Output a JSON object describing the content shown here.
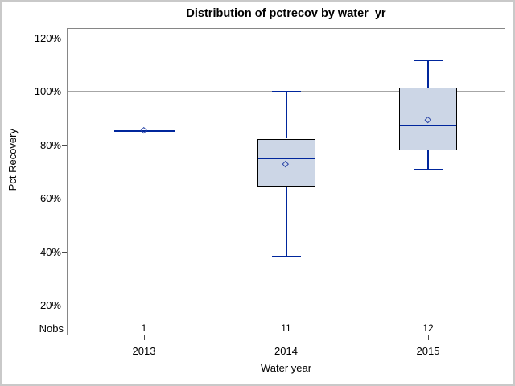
{
  "colors": {
    "box_fill": "#ccd6e6",
    "box_border": "#000000",
    "line_blue": "#00269c",
    "mean_marker": "#2c47a8",
    "gridline": "#a6a6a6",
    "frame": "#868686",
    "tick": "#4a4a4a",
    "text": "#000000",
    "outer_border": "#c9c9c9"
  },
  "axes": {
    "nobs_label": "Nobs"
  },
  "chart_data": {
    "type": "boxplot",
    "title": "Distribution of pctrecov by water_yr",
    "xlabel": "Water year",
    "ylabel": "Pct Recovery",
    "legend": "none",
    "grid": "reference line at 100% only",
    "y_axis": {
      "unit": "%",
      "range_shown": [
        20,
        120
      ],
      "ticks": [
        {
          "value": 120,
          "label": "120%"
        },
        {
          "value": 100,
          "label": "100%"
        },
        {
          "value": 80,
          "label": "80%"
        },
        {
          "value": 60,
          "label": "60%"
        },
        {
          "value": 40,
          "label": "40%"
        },
        {
          "value": 20,
          "label": "20%"
        }
      ]
    },
    "reference_line": 100,
    "categories": [
      "2013",
      "2014",
      "2015"
    ],
    "nobs": [
      "1",
      "11",
      "12"
    ],
    "series": [
      {
        "category": "2013",
        "n": 1,
        "min": 85.5,
        "q1": 85.5,
        "median": 85.5,
        "q3": 85.5,
        "max": 85.5,
        "mean": 85.5
      },
      {
        "category": "2014",
        "n": 11,
        "min": 38.5,
        "q1": 64.5,
        "median": 75,
        "q3": 82.5,
        "max": 100,
        "mean": 73
      },
      {
        "category": "2015",
        "n": 12,
        "min": 71,
        "q1": 78,
        "median": 87.5,
        "q3": 101.5,
        "max": 112,
        "mean": 89.5
      }
    ]
  }
}
